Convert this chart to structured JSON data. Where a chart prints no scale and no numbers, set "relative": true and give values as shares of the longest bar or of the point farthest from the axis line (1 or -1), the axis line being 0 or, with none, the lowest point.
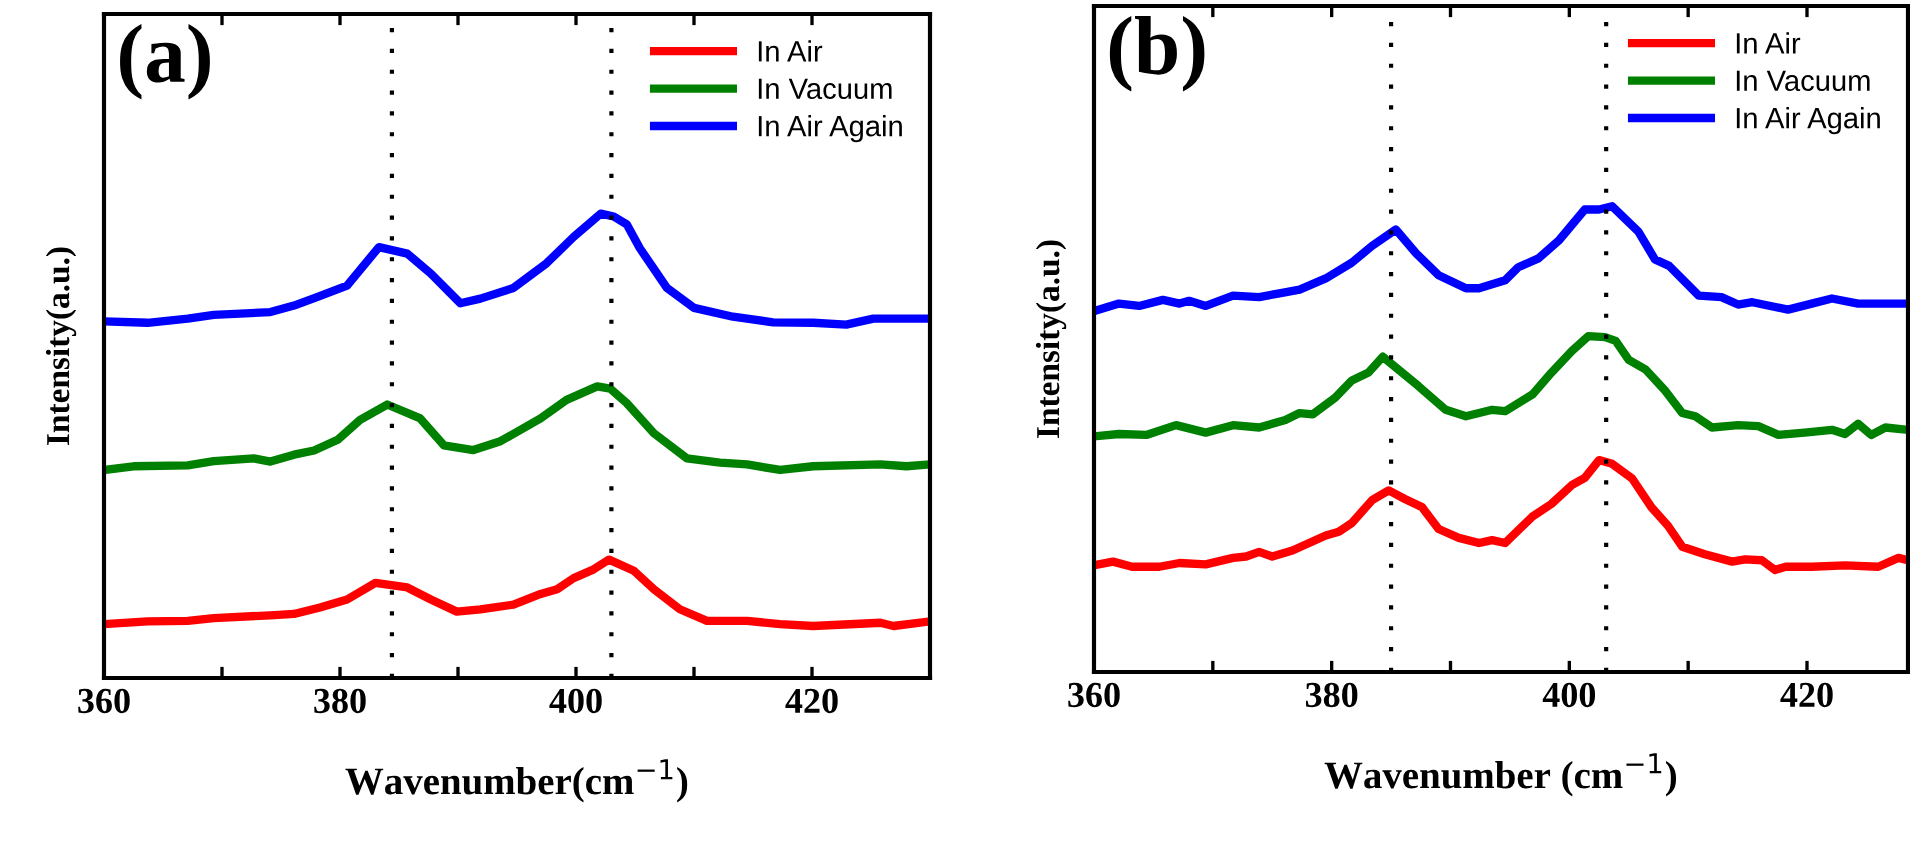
{
  "chart_data": [
    {
      "type": "line",
      "relative": true,
      "annotations": [
        "(a)"
      ],
      "xlabel": "Wavenumber(cm$^{−1}$)",
      "ylabel": "Intensity(a.u.)",
      "xlim": [
        360,
        430
      ],
      "xticks": [
        360,
        {
          "value": 370,
          "label": null
        },
        380,
        {
          "value": 390,
          "label": null
        },
        400,
        {
          "value": 410,
          "label": null
        },
        420
      ],
      "legend": "top right",
      "grid": false,
      "tick_labels": "x",
      "ref_lines": [
        {
          "axis": "x",
          "value": 384.4,
          "line_style": "dotted",
          "color": "#000000"
        },
        {
          "axis": "x",
          "value": 403.0,
          "line_style": "dotted",
          "color": "#000000"
        }
      ],
      "series": [
        {
          "name": "In Air",
          "color": "#ff0000",
          "x": [
            360,
            363.7,
            367.1,
            369.3,
            374.1,
            376.1,
            378.3,
            380.6,
            383.0,
            385.7,
            387.7,
            389.9,
            391.9,
            394.7,
            397.0,
            398.4,
            399.8,
            401.5,
            402.8,
            404.9,
            406.6,
            408.8,
            411.1,
            414.5,
            417.3,
            420.1,
            425.8,
            426.9,
            430
          ],
          "values": [
            0.116,
            0.122,
            0.123,
            0.129,
            0.135,
            0.138,
            0.152,
            0.169,
            0.205,
            0.195,
            0.169,
            0.143,
            0.148,
            0.158,
            0.181,
            0.191,
            0.215,
            0.234,
            0.255,
            0.231,
            0.191,
            0.148,
            0.123,
            0.123,
            0.116,
            0.112,
            0.119,
            0.112,
            0.122
          ]
        },
        {
          "name": "In Vacuum",
          "color": "#008000",
          "x": [
            360,
            362.5,
            367.1,
            369.3,
            372.7,
            374.1,
            376.1,
            377.8,
            379.8,
            381.7,
            384.0,
            386.8,
            388.8,
            391.3,
            393.6,
            397.0,
            399.2,
            401.8,
            402.9,
            404.3,
            406.6,
            409.4,
            412.2,
            414.5,
            417.3,
            420.1,
            425.8,
            428.0,
            430
          ],
          "values": [
            0.448,
            0.456,
            0.458,
            0.467,
            0.473,
            0.466,
            0.481,
            0.49,
            0.513,
            0.556,
            0.589,
            0.559,
            0.501,
            0.491,
            0.51,
            0.559,
            0.599,
            0.628,
            0.623,
            0.592,
            0.527,
            0.473,
            0.464,
            0.46,
            0.448,
            0.456,
            0.46,
            0.456,
            0.46
          ]
        },
        {
          "name": "In Air Again",
          "color": "#0000ff",
          "x": [
            360,
            363.7,
            367.1,
            369.3,
            374.1,
            376.1,
            378.1,
            380.6,
            383.3,
            385.7,
            387.7,
            390.2,
            391.9,
            394.7,
            397.5,
            399.8,
            402.1,
            403.2,
            404.3,
            405.4,
            407.7,
            410.0,
            413.3,
            416.7,
            420.1,
            422.9,
            425.2,
            430
          ],
          "values": [
            0.768,
            0.765,
            0.774,
            0.782,
            0.788,
            0.802,
            0.821,
            0.845,
            0.928,
            0.914,
            0.871,
            0.807,
            0.817,
            0.84,
            0.893,
            0.95,
            1.0,
            0.994,
            0.977,
            0.926,
            0.84,
            0.797,
            0.778,
            0.766,
            0.765,
            0.761,
            0.774,
            0.774
          ]
        }
      ]
    },
    {
      "type": "line",
      "relative": true,
      "annotations": [
        "(b)"
      ],
      "xlabel": "Wavenumber (cm$^{−1}$)",
      "ylabel": "Intensity(a.u.)",
      "xlim": [
        360,
        428.5
      ],
      "xticks": [
        360,
        {
          "value": 370,
          "label": null
        },
        380,
        {
          "value": 390,
          "label": null
        },
        400,
        {
          "value": 410,
          "label": null
        },
        420
      ],
      "legend": "top right",
      "grid": false,
      "tick_labels": "x",
      "ref_lines": [
        {
          "axis": "x",
          "value": 385.0,
          "line_style": "dotted",
          "color": "#000000"
        },
        {
          "axis": "x",
          "value": 403.1,
          "line_style": "dotted",
          "color": "#000000"
        }
      ],
      "series": [
        {
          "name": "In Air",
          "color": "#ff0000",
          "x": [
            360,
            361.6,
            363.2,
            365.5,
            367.2,
            369.4,
            371.7,
            372.8,
            373.9,
            375.0,
            376.7,
            379.5,
            380.6,
            381.7,
            383.4,
            384.8,
            386.2,
            387.6,
            389.0,
            390.7,
            392.4,
            393.5,
            394.6,
            396.9,
            398.5,
            400.2,
            401.3,
            402.5,
            403.6,
            405.3,
            406.9,
            408.3,
            409.5,
            411.4,
            413.7,
            414.8,
            416.2,
            417.3,
            418.2,
            420.4,
            423.2,
            426.0,
            427.7,
            428.5
          ],
          "values": [
            0.229,
            0.237,
            0.226,
            0.226,
            0.234,
            0.231,
            0.245,
            0.248,
            0.258,
            0.248,
            0.261,
            0.293,
            0.301,
            0.32,
            0.369,
            0.39,
            0.371,
            0.354,
            0.307,
            0.288,
            0.277,
            0.283,
            0.277,
            0.334,
            0.361,
            0.401,
            0.417,
            0.455,
            0.447,
            0.415,
            0.354,
            0.314,
            0.269,
            0.253,
            0.237,
            0.242,
            0.24,
            0.219,
            0.226,
            0.226,
            0.229,
            0.226,
            0.245,
            0.24
          ]
        },
        {
          "name": "In Vacuum",
          "color": "#008000",
          "x": [
            360,
            362.1,
            364.4,
            366.9,
            369.4,
            371.7,
            373.9,
            376.1,
            377.3,
            378.4,
            380.3,
            381.7,
            383.1,
            384.3,
            386.2,
            387.3,
            389.6,
            391.3,
            393.5,
            394.6,
            396.9,
            398.5,
            400.2,
            401.6,
            403.0,
            403.9,
            405.0,
            406.4,
            408.1,
            409.5,
            410.6,
            412.0,
            414.2,
            415.9,
            417.6,
            419.8,
            422.1,
            423.2,
            424.3,
            425.4,
            426.6,
            428.5
          ],
          "values": [
            0.506,
            0.511,
            0.509,
            0.53,
            0.514,
            0.53,
            0.525,
            0.541,
            0.556,
            0.553,
            0.589,
            0.626,
            0.643,
            0.677,
            0.637,
            0.614,
            0.563,
            0.549,
            0.563,
            0.56,
            0.596,
            0.643,
            0.689,
            0.721,
            0.719,
            0.711,
            0.67,
            0.65,
            0.603,
            0.556,
            0.549,
            0.525,
            0.53,
            0.528,
            0.509,
            0.514,
            0.52,
            0.511,
            0.533,
            0.509,
            0.525,
            0.52
          ]
        },
        {
          "name": "In Air Again",
          "color": "#0000ff",
          "x": [
            360,
            362.1,
            363.8,
            365.8,
            367.2,
            368.0,
            369.4,
            371.7,
            373.9,
            375.6,
            377.3,
            379.5,
            381.7,
            383.4,
            385.4,
            387.1,
            389.0,
            391.3,
            392.4,
            394.6,
            395.7,
            397.4,
            399.1,
            401.3,
            402.5,
            403.6,
            405.8,
            407.2,
            408.4,
            410.9,
            412.8,
            414.2,
            415.4,
            418.4,
            420.4,
            422.1,
            424.3,
            428.5
          ],
          "values": [
            0.775,
            0.791,
            0.786,
            0.799,
            0.791,
            0.797,
            0.786,
            0.808,
            0.805,
            0.813,
            0.821,
            0.845,
            0.879,
            0.915,
            0.95,
            0.899,
            0.852,
            0.824,
            0.824,
            0.841,
            0.869,
            0.888,
            0.926,
            0.993,
            0.993,
            1.0,
            0.946,
            0.886,
            0.872,
            0.808,
            0.805,
            0.789,
            0.794,
            0.778,
            0.791,
            0.802,
            0.791,
            0.791
          ]
        }
      ]
    }
  ]
}
